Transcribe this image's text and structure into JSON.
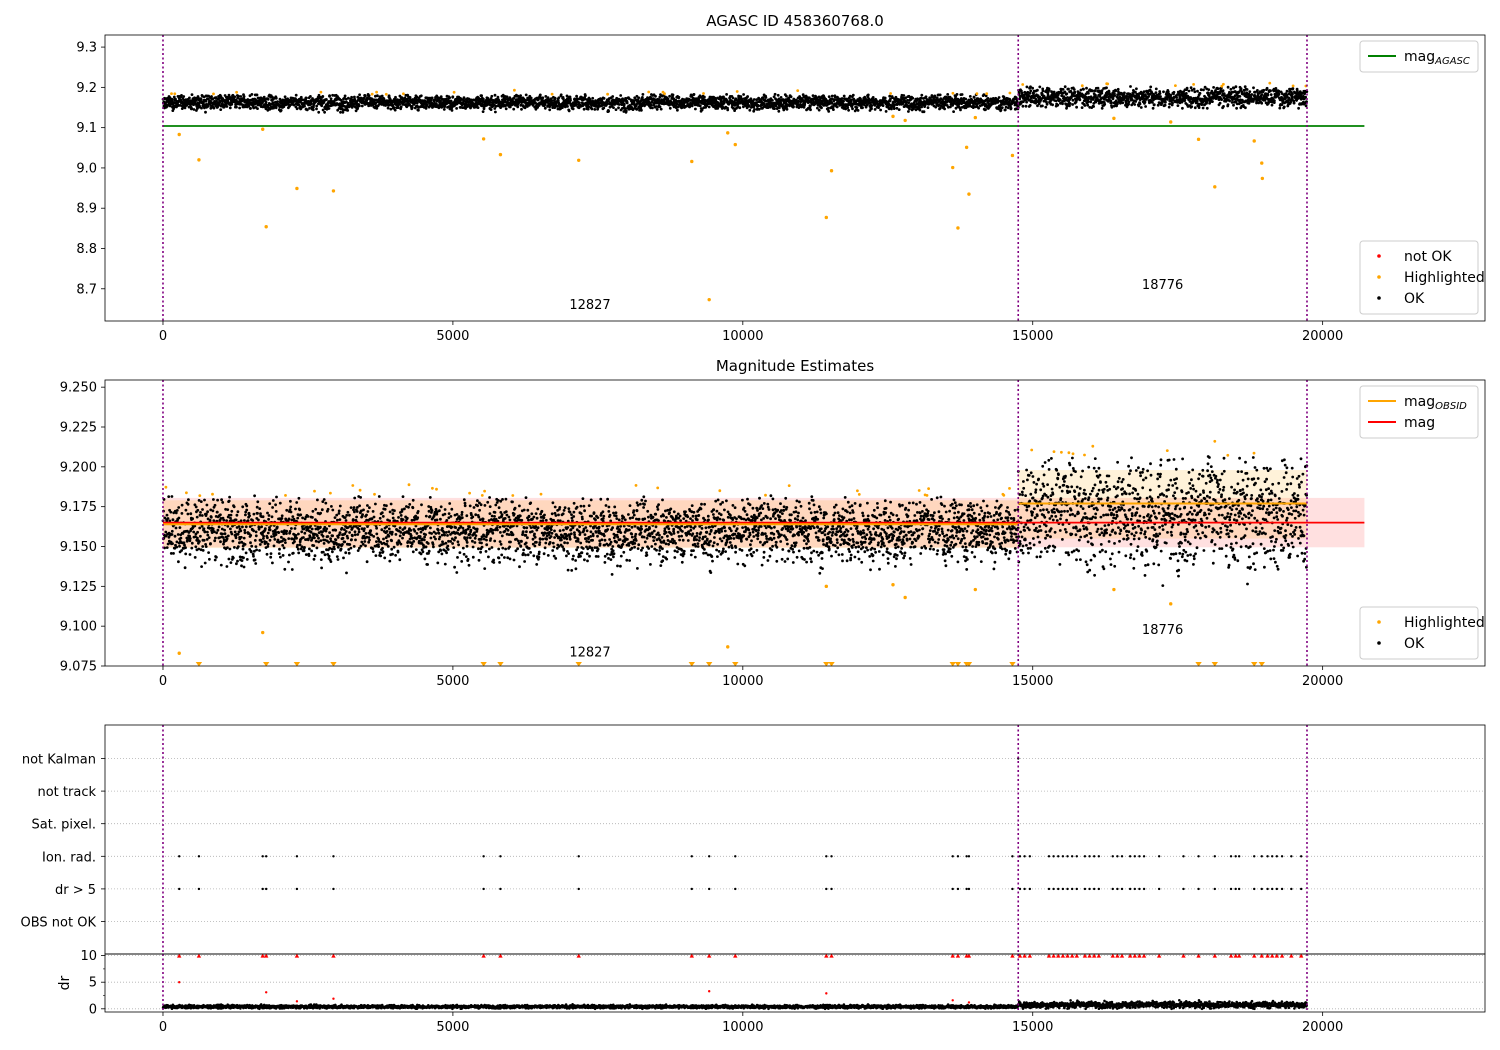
{
  "figure": {
    "background": "#ffffff"
  },
  "colors": {
    "ok": "#000000",
    "highlighted": "#ffa500",
    "not_ok": "#ff0000",
    "mag_agasc": "#008000",
    "mag": "#ff0000",
    "mag_obsid": "#ffa500",
    "obs_boundary": "#800080",
    "band_fill": "#ff9999"
  },
  "chart_data": [
    {
      "type": "scatter",
      "title": "AGASC ID 458360768.0",
      "xlim": [
        -1000,
        22800
      ],
      "ylim": [
        8.62,
        9.33
      ],
      "xticks": [
        0,
        5000,
        10000,
        15000,
        20000
      ],
      "yticks": [
        8.7,
        8.8,
        8.9,
        9.0,
        9.1,
        9.2,
        9.3
      ],
      "ytick_labels": [
        "8.7",
        "8.8",
        "8.9",
        "9.0",
        "9.1",
        "9.2",
        "9.3"
      ],
      "obs_boundaries": [
        0,
        14750,
        19730
      ],
      "obs_labels": [
        {
          "text": "12827",
          "x": 7365,
          "y": 8.65
        },
        {
          "text": "18776",
          "x": 17240,
          "y": 8.7
        }
      ],
      "hlines": [
        {
          "name": "mag_AGASC",
          "y": 9.104,
          "x0": 0,
          "x1": 20720
        }
      ],
      "segments": [
        {
          "x0": 0,
          "x1": 14750,
          "mean": 9.163,
          "spread": 0.009,
          "top": 9.215,
          "bottom": 9.138
        },
        {
          "x0": 14750,
          "x1": 19730,
          "mean": 9.176,
          "spread": 0.012,
          "top": 9.262,
          "bottom": 9.148
        }
      ],
      "outliers": [
        {
          "x": 280,
          "y": 9.083
        },
        {
          "x": 620,
          "y": 9.02
        },
        {
          "x": 1720,
          "y": 9.096
        },
        {
          "x": 1780,
          "y": 8.854
        },
        {
          "x": 2310,
          "y": 8.949
        },
        {
          "x": 2940,
          "y": 8.943
        },
        {
          "x": 5530,
          "y": 9.072
        },
        {
          "x": 5820,
          "y": 9.033
        },
        {
          "x": 7170,
          "y": 9.019
        },
        {
          "x": 9120,
          "y": 9.016
        },
        {
          "x": 9420,
          "y": 8.673
        },
        {
          "x": 9740,
          "y": 9.087
        },
        {
          "x": 9870,
          "y": 9.058
        },
        {
          "x": 11440,
          "y": 8.877
        },
        {
          "x": 11530,
          "y": 8.993
        },
        {
          "x": 12590,
          "y": 9.128
        },
        {
          "x": 12800,
          "y": 9.118
        },
        {
          "x": 13620,
          "y": 9.001
        },
        {
          "x": 13710,
          "y": 8.851
        },
        {
          "x": 13860,
          "y": 9.051
        },
        {
          "x": 13900,
          "y": 8.935
        },
        {
          "x": 14010,
          "y": 9.125
        },
        {
          "x": 14650,
          "y": 9.031
        },
        {
          "x": 16400,
          "y": 9.123
        },
        {
          "x": 17380,
          "y": 9.114
        },
        {
          "x": 17860,
          "y": 9.071
        },
        {
          "x": 18140,
          "y": 8.953
        },
        {
          "x": 18820,
          "y": 9.067
        },
        {
          "x": 18950,
          "y": 9.012
        },
        {
          "x": 18960,
          "y": 8.974
        }
      ],
      "legends": [
        {
          "position": "upper-right",
          "entries": [
            {
              "kind": "line",
              "color": "#008000",
              "label": "mag",
              "sub": "AGASC"
            }
          ]
        },
        {
          "position": "lower-right",
          "entries": [
            {
              "kind": "dot",
              "color": "#ff0000",
              "label": "not OK"
            },
            {
              "kind": "dot",
              "color": "#ffa500",
              "label": "Highlighted"
            },
            {
              "kind": "dot",
              "color": "#000000",
              "label": "OK"
            }
          ]
        }
      ]
    },
    {
      "type": "scatter",
      "title": "Magnitude Estimates",
      "xlim": [
        -1000,
        22800
      ],
      "ylim": [
        9.075,
        9.2545
      ],
      "xticks": [
        0,
        5000,
        10000,
        15000,
        20000
      ],
      "yticks": [
        9.075,
        9.1,
        9.125,
        9.15,
        9.175,
        9.2,
        9.225,
        9.25
      ],
      "ytick_labels": [
        "9.075",
        "9.100",
        "9.125",
        "9.150",
        "9.175",
        "9.200",
        "9.225",
        "9.250"
      ],
      "obs_boundaries": [
        0,
        14750,
        19730
      ],
      "obs_labels": [
        {
          "text": "12827",
          "x": 7365,
          "y": 9.081
        },
        {
          "text": "18776",
          "x": 17240,
          "y": 9.095
        }
      ],
      "mag": {
        "y": 9.165,
        "band": [
          9.1495,
          9.1805
        ],
        "x0": 0,
        "x1": 20720
      },
      "mag_obsid": [
        {
          "x0": 0,
          "x1": 14750,
          "y": 9.164,
          "band": [
            9.149,
            9.179
          ]
        },
        {
          "x0": 14750,
          "x1": 19730,
          "y": 9.177,
          "band": [
            9.155,
            9.198
          ]
        }
      ],
      "segments": [
        {
          "x0": 0,
          "x1": 14750,
          "mean": 9.161,
          "spread": 0.0095,
          "top": 9.222,
          "bottom": 9.126
        },
        {
          "x0": 14750,
          "x1": 19730,
          "mean": 9.172,
          "spread": 0.016,
          "top": 9.254,
          "bottom": 9.113
        }
      ],
      "outliers": [
        {
          "x": 280,
          "y": 9.083
        },
        {
          "x": 1720,
          "y": 9.096
        },
        {
          "x": 9740,
          "y": 9.087
        },
        {
          "x": 11440,
          "y": 9.125
        },
        {
          "x": 12590,
          "y": 9.126
        },
        {
          "x": 12800,
          "y": 9.118
        },
        {
          "x": 14010,
          "y": 9.123
        },
        {
          "x": 16400,
          "y": 9.123
        },
        {
          "x": 17380,
          "y": 9.114
        }
      ],
      "clipped_x": [
        620,
        1780,
        2310,
        2940,
        5530,
        5820,
        7170,
        9120,
        9420,
        9870,
        11440,
        11530,
        13620,
        13710,
        13860,
        13900,
        14650,
        17860,
        18140,
        18820,
        18950
      ],
      "legends": [
        {
          "position": "upper-right",
          "entries": [
            {
              "kind": "line",
              "color": "#ffa500",
              "label": "mag",
              "sub": "OBSID"
            },
            {
              "kind": "line",
              "color": "#ff0000",
              "label": "mag"
            }
          ]
        },
        {
          "position": "lower-right",
          "entries": [
            {
              "kind": "dot",
              "color": "#ffa500",
              "label": "Highlighted"
            },
            {
              "kind": "dot",
              "color": "#000000",
              "label": "OK"
            }
          ]
        }
      ]
    },
    {
      "type": "scatter",
      "title": "",
      "xlim": [
        -1000,
        22800
      ],
      "flag_rows": [
        "not Kalman",
        "not track",
        "Sat. pixel.",
        "Ion. rad.",
        "dr > 5",
        "OBS not OK"
      ],
      "obs_boundaries": [
        0,
        14750,
        19730
      ],
      "flag_events": {
        "not Kalman": [
          14750
        ],
        "Ion. rad.": [
          280,
          620,
          1720,
          1780,
          2310,
          2940,
          5530,
          5820,
          7170,
          9120,
          9420,
          9870,
          11440,
          11530,
          13620,
          13710,
          13860,
          13900,
          14650,
          14780,
          14860,
          14950,
          15280,
          15360,
          15440,
          15520,
          15600,
          15680,
          15760,
          15900,
          15980,
          16060,
          16140,
          16380,
          16460,
          16540,
          16680,
          16760,
          16840,
          16920,
          17180,
          17600,
          17860,
          18140,
          18420,
          18500,
          18560,
          18820,
          18950,
          19050,
          19130,
          19210,
          19300,
          19460,
          19630
        ],
        "dr > 5": [
          280,
          620,
          1720,
          1780,
          2310,
          2940,
          5530,
          5820,
          7170,
          9120,
          9420,
          9870,
          11440,
          11530,
          13620,
          13710,
          13860,
          13900,
          14650,
          14780,
          14860,
          14950,
          15280,
          15360,
          15440,
          15520,
          15600,
          15680,
          15760,
          15900,
          15980,
          16060,
          16140,
          16380,
          16460,
          16540,
          16680,
          16760,
          16840,
          16920,
          17180,
          17600,
          17860,
          18140,
          18420,
          18500,
          18560,
          18820,
          18950,
          19050,
          19130,
          19210,
          19300,
          19460,
          19630
        ]
      }
    },
    {
      "type": "scatter",
      "title": "",
      "xlim": [
        -1000,
        22800
      ],
      "ylim": [
        -0.6,
        10.3
      ],
      "ylabel": "dr",
      "xticks": [
        0,
        5000,
        10000,
        15000,
        20000
      ],
      "yticks": [
        0,
        5,
        10
      ],
      "ytick_labels": [
        "0",
        "5",
        "10"
      ],
      "minor_yticks": [
        2.5,
        7.5
      ],
      "obs_boundaries": [
        0,
        14750,
        19730
      ],
      "segments": [
        {
          "x0": 0,
          "x1": 14750,
          "mean": 0.4,
          "spread": 0.15
        },
        {
          "x0": 14750,
          "x1": 19730,
          "mean": 0.75,
          "spread": 0.3
        }
      ],
      "clipped_value": 10,
      "outliers": [
        {
          "x": 280,
          "y": 5.0
        },
        {
          "x": 1780,
          "y": 3.1
        },
        {
          "x": 2310,
          "y": 1.4
        },
        {
          "x": 2940,
          "y": 1.9
        },
        {
          "x": 9420,
          "y": 3.3
        },
        {
          "x": 11440,
          "y": 2.9
        },
        {
          "x": 13620,
          "y": 1.6
        },
        {
          "x": 13900,
          "y": 1.2
        }
      ]
    }
  ]
}
